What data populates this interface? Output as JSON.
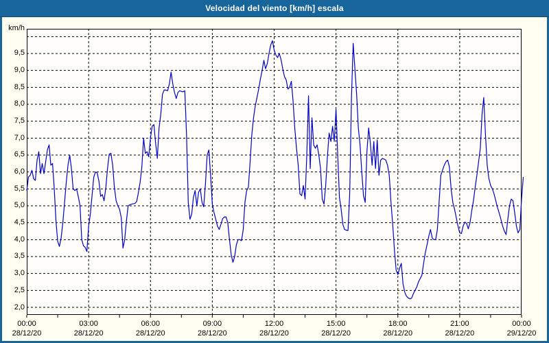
{
  "window": {
    "title": "Velocidad del viento [km/h] escala"
  },
  "colors": {
    "titlebar": "#17659a",
    "frame": "#17659a",
    "background": "#fdfdf2",
    "plot_background": "#fffefa",
    "grid": "#000000",
    "line": "#0000cd",
    "text": "#000000"
  },
  "chart_data": {
    "type": "line",
    "title": "Velocidad del viento [km/h] escala",
    "ylabel": "km/h",
    "xlabel": "",
    "ylim": [
      2.0,
      10.0
    ],
    "y_tick_step": 0.5,
    "y_tick_labels": [
      "9,5",
      "9,0",
      "8,5",
      "8,0",
      "7,5",
      "7,0",
      "6,5",
      "6,0",
      "5,5",
      "5,0",
      "4,5",
      "4,0",
      "3,5",
      "3,0",
      "2,5",
      "2,0"
    ],
    "grid": "dashed",
    "legend_position": "none",
    "x_ticks": [
      {
        "time": "00:00",
        "date": "28/12/20"
      },
      {
        "time": "03:00",
        "date": "28/12/20"
      },
      {
        "time": "06:00",
        "date": "28/12/20"
      },
      {
        "time": "09:00",
        "date": "28/12/20"
      },
      {
        "time": "12:00",
        "date": "28/12/20"
      },
      {
        "time": "15:00",
        "date": "28/12/20"
      },
      {
        "time": "18:00",
        "date": "28/12/20"
      },
      {
        "time": "21:00",
        "date": "28/12/20"
      },
      {
        "time": "00:00",
        "date": "29/12/20"
      }
    ],
    "x_minor_tick_interval_hours": 1.5,
    "x_range_hours": 24,
    "series": [
      {
        "name": "Velocidad del viento",
        "color": "#0000cd",
        "start": "28/12/20 00:00",
        "interval_minutes": 5,
        "values": [
          5.45,
          5.85,
          5.9,
          6.05,
          5.8,
          5.75,
          6.35,
          6.6,
          5.95,
          6.25,
          5.95,
          6.3,
          6.65,
          6.8,
          6.2,
          6.25,
          5.5,
          4.55,
          3.95,
          3.8,
          4.05,
          4.5,
          5.1,
          5.7,
          6.2,
          6.5,
          6.1,
          5.5,
          5.45,
          5.5,
          5.27,
          5.0,
          4.0,
          3.82,
          3.77,
          3.65,
          4.4,
          4.75,
          5.3,
          5.85,
          6.0,
          5.97,
          5.73,
          5.28,
          5.33,
          5.15,
          5.53,
          6.1,
          6.53,
          6.55,
          6.2,
          5.55,
          5.15,
          5.0,
          4.9,
          4.65,
          3.75,
          4.0,
          4.55,
          5.0,
          5.03,
          5.05,
          5.06,
          5.07,
          5.13,
          5.4,
          5.7,
          6.15,
          7.0,
          6.55,
          6.6,
          6.45,
          7.0,
          7.35,
          7.4,
          6.85,
          6.4,
          7.3,
          7.7,
          8.3,
          8.42,
          8.42,
          8.4,
          8.6,
          8.95,
          8.6,
          8.35,
          8.17,
          8.35,
          8.4,
          8.38,
          8.37,
          8.4,
          7.1,
          5.1,
          4.6,
          4.75,
          5.25,
          5.45,
          5.0,
          5.4,
          5.5,
          5.1,
          4.97,
          5.65,
          6.5,
          6.65,
          5.9,
          5.05,
          4.8,
          4.6,
          4.4,
          4.3,
          4.45,
          4.62,
          4.67,
          4.67,
          4.5,
          4.0,
          3.55,
          3.33,
          3.5,
          3.85,
          4.0,
          4.0,
          3.97,
          4.3,
          5.1,
          5.45,
          5.55,
          6.3,
          7.1,
          7.6,
          7.95,
          8.2,
          8.45,
          8.75,
          9.0,
          9.3,
          9.05,
          9.2,
          9.5,
          9.75,
          9.88,
          9.6,
          9.45,
          9.38,
          9.5,
          9.32,
          9.05,
          8.82,
          8.72,
          8.45,
          8.5,
          8.68,
          8.1,
          7.3,
          6.7,
          6.2,
          5.35,
          5.3,
          5.6,
          5.2,
          6.5,
          8.25,
          6.1,
          7.6,
          6.8,
          6.7,
          6.8,
          6.5,
          6.1,
          5.2,
          5.05,
          5.6,
          6.45,
          7.15,
          6.9,
          7.35,
          6.9,
          7.85,
          6.5,
          5.25,
          4.9,
          4.45,
          4.3,
          4.28,
          4.27,
          5.4,
          8.2,
          9.8,
          9.05,
          8.3,
          7.3,
          6.8,
          6.0,
          5.3,
          5.1,
          6.6,
          7.3,
          6.85,
          6.2,
          6.9,
          6.1,
          6.95,
          5.9,
          6.35,
          6.4,
          6.38,
          6.35,
          6.2,
          5.9,
          5.1,
          4.45,
          3.7,
          3.1,
          2.97,
          3.15,
          3.3,
          2.7,
          2.45,
          2.33,
          2.28,
          2.25,
          2.27,
          2.4,
          2.5,
          2.6,
          2.75,
          2.85,
          2.95,
          3.3,
          3.62,
          3.85,
          4.1,
          4.3,
          4.05,
          4.0,
          4.0,
          4.3,
          5.1,
          5.9,
          6.05,
          6.2,
          6.3,
          6.35,
          6.15,
          5.5,
          5.1,
          4.9,
          4.65,
          4.4,
          4.2,
          4.18,
          4.4,
          4.52,
          4.48,
          4.32,
          4.5,
          4.85,
          5.15,
          5.55,
          5.9,
          6.3,
          6.7,
          7.7,
          8.2,
          7.1,
          6.2,
          5.8,
          5.6,
          5.5,
          5.35,
          5.15,
          4.95,
          4.78,
          4.6,
          4.4,
          4.25,
          4.15,
          4.6,
          5.0,
          5.2,
          5.15,
          4.8,
          4.4,
          4.2,
          4.3,
          5.2,
          5.85
        ]
      }
    ]
  }
}
